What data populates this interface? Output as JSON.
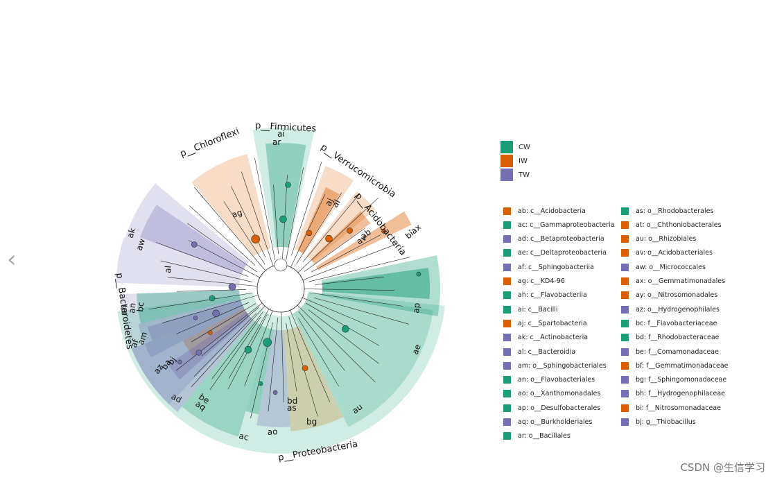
{
  "chart_data": {
    "type": "cladogram",
    "title": "",
    "groups": [
      {
        "name": "CW",
        "color": "#1b9e77"
      },
      {
        "name": "IW",
        "color": "#d95f02"
      },
      {
        "name": "TW",
        "color": "#7570b3"
      }
    ],
    "phyla": [
      "p__Chloroflexi",
      "p__Firmicutes",
      "p__Verrucomicrobia",
      "p__Acidobacteria",
      "p__Bacteroidetes",
      "p__Proteobacteria"
    ],
    "sector_labels": [
      "ag",
      "ai",
      "ar",
      "aj",
      "al",
      "ab",
      "av",
      "bi",
      "ax",
      "ak",
      "aw",
      "al",
      "ac",
      "ap",
      "ae",
      "au",
      "bg",
      "bd",
      "as",
      "ao",
      "ac",
      "ad",
      "be",
      "aq",
      "ah",
      "an",
      "bc",
      "am",
      "af",
      "ba",
      "bj",
      "az"
    ],
    "clades": [
      {
        "id": "ab",
        "name": "c__Acidobacteria",
        "group": "IW"
      },
      {
        "id": "ac",
        "name": "c__Gammaproteobacteria",
        "group": "CW"
      },
      {
        "id": "ad",
        "name": "c__Betaproteobacteria",
        "group": "TW"
      },
      {
        "id": "ae",
        "name": "c__Deltaproteobacteria",
        "group": "CW"
      },
      {
        "id": "af",
        "name": "c__Sphingobacteriia",
        "group": "TW"
      },
      {
        "id": "ag",
        "name": "c__KD4-96",
        "group": "IW"
      },
      {
        "id": "ah",
        "name": "c__Flavobacteriia",
        "group": "CW"
      },
      {
        "id": "ai",
        "name": "c__Bacilli",
        "group": "CW"
      },
      {
        "id": "aj",
        "name": "c__Spartobacteria",
        "group": "IW"
      },
      {
        "id": "ak",
        "name": "c__Actinobacteria",
        "group": "TW"
      },
      {
        "id": "al",
        "name": "c__Bacteroidia",
        "group": "TW"
      },
      {
        "id": "am",
        "name": "o__Sphingobacteriales",
        "group": "TW"
      },
      {
        "id": "an",
        "name": "o__Flavobacteriales",
        "group": "CW"
      },
      {
        "id": "ao",
        "name": "o__Xanthomonadales",
        "group": "CW"
      },
      {
        "id": "ap",
        "name": "o__Desulfobacterales",
        "group": "CW"
      },
      {
        "id": "aq",
        "name": "o__Burkholderiales",
        "group": "TW"
      },
      {
        "id": "ar",
        "name": "o__Bacillales",
        "group": "CW"
      },
      {
        "id": "as",
        "name": "o__Rhodobacterales",
        "group": "CW"
      },
      {
        "id": "at",
        "name": "o__Chthoniobacterales",
        "group": "IW"
      },
      {
        "id": "au",
        "name": "o__Rhizobiales",
        "group": "IW"
      },
      {
        "id": "av",
        "name": "o__Acidobacteriales",
        "group": "IW"
      },
      {
        "id": "aw",
        "name": "o__Micrococcales",
        "group": "TW"
      },
      {
        "id": "ax",
        "name": "o__Gemmatimonadales",
        "group": "IW"
      },
      {
        "id": "ay",
        "name": "o__Nitrosomonadales",
        "group": "IW"
      },
      {
        "id": "az",
        "name": "o__Hydrogenophilales",
        "group": "TW"
      },
      {
        "id": "bc",
        "name": "f__Flavobacteriaceae",
        "group": "CW"
      },
      {
        "id": "bd",
        "name": "f__Rhodobacteraceae",
        "group": "CW"
      },
      {
        "id": "be",
        "name": "f__Comamonadaceae",
        "group": "TW"
      },
      {
        "id": "bf",
        "name": "f__Gemmatimonadaceae",
        "group": "IW"
      },
      {
        "id": "bg",
        "name": "f__Sphingomonadaceae",
        "group": "TW"
      },
      {
        "id": "bh",
        "name": "f__Hydrogenophilaceae",
        "group": "TW"
      },
      {
        "id": "bi",
        "name": "f__Nitrosomonadaceae",
        "group": "IW"
      },
      {
        "id": "bj",
        "name": "g__Thiobacillus",
        "group": "TW"
      }
    ]
  },
  "ui": {
    "nav_arrow": "‹",
    "watermark": "CSDN @生信学习"
  }
}
